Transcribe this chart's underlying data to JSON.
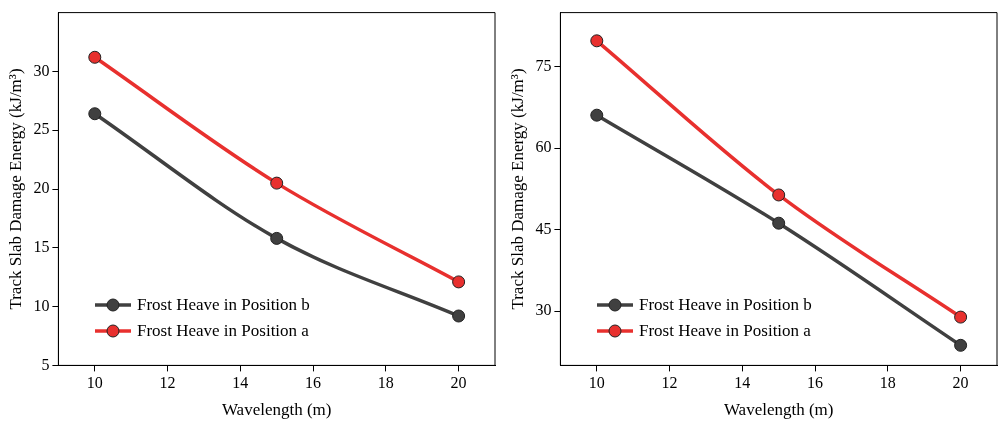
{
  "chart_data": [
    {
      "type": "line",
      "xlabel": "Wavelength (m)",
      "ylabel": "Track Slab Damage Energy (kJ/m³)",
      "x": [
        10,
        15,
        20
      ],
      "xlim": [
        9,
        21
      ],
      "xticks": [
        10,
        12,
        14,
        16,
        18,
        20
      ],
      "ylim": [
        5,
        35
      ],
      "yticks": [
        5,
        10,
        15,
        20,
        25,
        30
      ],
      "marker": "circle",
      "legend": "bottom left",
      "grid": false,
      "series": [
        {
          "name": "Frost Heave in Position b",
          "color": "#404040",
          "values": [
            26.4,
            15.8,
            9.2
          ]
        },
        {
          "name": "Frost Heave in Position a",
          "color": "#e8302e",
          "values": [
            31.2,
            20.5,
            12.1
          ]
        }
      ]
    },
    {
      "type": "line",
      "xlabel": "Wavelength (m)",
      "ylabel": "Track Slab Damage Energy (kJ/m³)",
      "x": [
        10,
        15,
        20
      ],
      "xlim": [
        9,
        21
      ],
      "xticks": [
        10,
        12,
        14,
        16,
        18,
        20
      ],
      "ylim": [
        20,
        85
      ],
      "yticks": [
        30,
        45,
        60,
        75
      ],
      "marker": "circle",
      "legend": "bottom left",
      "grid": false,
      "series": [
        {
          "name": "Frost Heave in Position b",
          "color": "#404040",
          "values": [
            66.1,
            46.2,
            23.7
          ]
        },
        {
          "name": "Frost Heave in Position a",
          "color": "#e8302e",
          "values": [
            79.8,
            51.4,
            28.9
          ]
        }
      ]
    }
  ]
}
